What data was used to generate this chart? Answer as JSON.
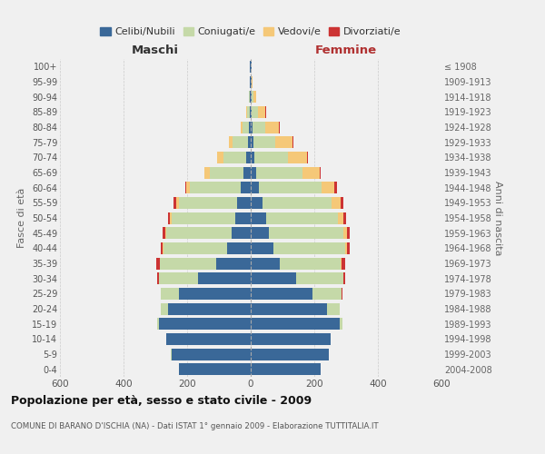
{
  "age_groups": [
    "0-4",
    "5-9",
    "10-14",
    "15-19",
    "20-24",
    "25-29",
    "30-34",
    "35-39",
    "40-44",
    "45-49",
    "50-54",
    "55-59",
    "60-64",
    "65-69",
    "70-74",
    "75-79",
    "80-84",
    "85-89",
    "90-94",
    "95-99",
    "100+"
  ],
  "birth_years": [
    "2004-2008",
    "1999-2003",
    "1994-1998",
    "1989-1993",
    "1984-1988",
    "1979-1983",
    "1974-1978",
    "1969-1973",
    "1964-1968",
    "1959-1963",
    "1954-1958",
    "1949-1953",
    "1944-1948",
    "1939-1943",
    "1934-1938",
    "1929-1933",
    "1924-1928",
    "1919-1923",
    "1914-1918",
    "1909-1913",
    "≤ 1908"
  ],
  "colors": {
    "celibi": "#3a6898",
    "coniugati": "#c5d9a8",
    "vedovi": "#f5c878",
    "divorziati": "#cc3333"
  },
  "maschi": {
    "celibi": [
      225,
      250,
      265,
      290,
      260,
      225,
      165,
      110,
      75,
      60,
      50,
      42,
      32,
      22,
      15,
      10,
      5,
      4,
      3,
      2,
      2
    ],
    "coniugati": [
      0,
      1,
      2,
      5,
      22,
      58,
      125,
      175,
      200,
      205,
      198,
      185,
      160,
      108,
      72,
      48,
      22,
      8,
      2,
      1,
      0
    ],
    "vedovi": [
      0,
      0,
      0,
      0,
      0,
      0,
      0,
      1,
      2,
      3,
      5,
      7,
      10,
      15,
      18,
      10,
      5,
      3,
      1,
      0,
      0
    ],
    "divorziati": [
      0,
      0,
      0,
      0,
      0,
      1,
      3,
      10,
      6,
      8,
      6,
      8,
      5,
      2,
      1,
      0,
      0,
      0,
      0,
      0,
      0
    ]
  },
  "femmine": {
    "celibi": [
      220,
      245,
      250,
      280,
      240,
      195,
      142,
      92,
      72,
      58,
      48,
      36,
      26,
      16,
      10,
      8,
      5,
      4,
      3,
      2,
      2
    ],
    "coniugati": [
      0,
      1,
      2,
      8,
      40,
      92,
      148,
      192,
      225,
      232,
      225,
      218,
      198,
      148,
      108,
      68,
      42,
      18,
      5,
      1,
      0
    ],
    "vedovi": [
      0,
      0,
      0,
      0,
      0,
      0,
      1,
      2,
      6,
      12,
      18,
      28,
      38,
      52,
      58,
      55,
      42,
      25,
      10,
      2,
      1
    ],
    "divorziati": [
      0,
      0,
      0,
      0,
      1,
      2,
      6,
      10,
      8,
      10,
      8,
      8,
      8,
      5,
      3,
      2,
      1,
      1,
      0,
      0,
      0
    ]
  },
  "title": "Popolazione per età, sesso e stato civile - 2009",
  "subtitle": "COMUNE DI BARANO D'ISCHIA (NA) - Dati ISTAT 1° gennaio 2009 - Elaborazione TUTTITALIA.IT",
  "xlabel_left": "Maschi",
  "xlabel_right": "Femmine",
  "ylabel_left": "Fasce di età",
  "ylabel_right": "Anni di nascita",
  "legend_labels": [
    "Celibi/Nubili",
    "Coniugati/e",
    "Vedovi/e",
    "Divorziati/e"
  ],
  "xlim": 600,
  "background_color": "#f0f0f0",
  "grid_color": "#cccccc"
}
